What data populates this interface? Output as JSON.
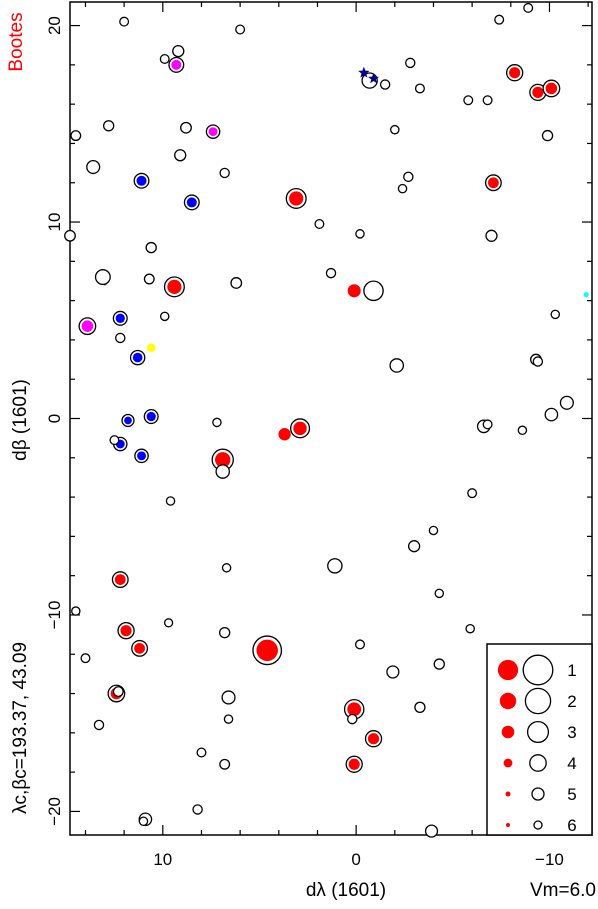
{
  "chart_data": {
    "type": "scatter",
    "title": "Bootes",
    "xlabel": "dλ (1601)",
    "ylabel": "dβ (1601)",
    "center_label": "λc,βc=193.37, 43.09",
    "magnitude_label": "Vm=6.0",
    "xlim": [
      14.8,
      -12.2
    ],
    "ylim": [
      -21.2,
      21.2
    ],
    "x_ticks": [
      10,
      0,
      -10
    ],
    "x_tick_labels": [
      "10",
      "0",
      "−10"
    ],
    "y_ticks": [
      -20,
      -10,
      0,
      10,
      20
    ],
    "y_tick_labels": [
      "−20",
      "−10",
      "0",
      "10",
      "20"
    ],
    "grid": false,
    "colors": {
      "title": "#ff0000",
      "red": "#ff0000",
      "blue": "#0000ff",
      "magenta": "#ff00ff",
      "yellow": "#ffff00",
      "cyan": "#00ffff",
      "navy": "#00008b"
    },
    "legend": {
      "position": "bottom-right",
      "entries": [
        {
          "label": "1",
          "size_class": 1
        },
        {
          "label": "2",
          "size_class": 2
        },
        {
          "label": "3",
          "size_class": 3
        },
        {
          "label": "4",
          "size_class": 4
        },
        {
          "label": "5",
          "size_class": 5
        },
        {
          "label": "6",
          "size_class": 6
        }
      ]
    },
    "stars": [
      {
        "x": 4.6,
        "y": -11.8,
        "mag": 1.2,
        "color": "red",
        "ring": true
      },
      {
        "x": 6.9,
        "y": -2.1,
        "mag": 2.8,
        "color": "red",
        "ring": true
      },
      {
        "x": 9.4,
        "y": 6.7,
        "mag": 3.1,
        "color": "red",
        "ring": true
      },
      {
        "x": 3.1,
        "y": 11.2,
        "mag": 3.1,
        "color": "red",
        "ring": true
      },
      {
        "x": 0.1,
        "y": 6.5,
        "mag": 3.4,
        "color": "red",
        "ring": false
      },
      {
        "x": -0.9,
        "y": 6.5,
        "mag": 3.2,
        "color": "none",
        "ring": true
      },
      {
        "x": 0.1,
        "y": -14.8,
        "mag": 3.2,
        "color": "red",
        "ring": true
      },
      {
        "x": 3.7,
        "y": -0.8,
        "mag": 3.6,
        "color": "red",
        "ring": false
      },
      {
        "x": 2.9,
        "y": -0.5,
        "mag": 3.3,
        "color": "red",
        "ring": true
      },
      {
        "x": 0.1,
        "y": -17.6,
        "mag": 3.9,
        "color": "red",
        "ring": true
      },
      {
        "x": -0.9,
        "y": -16.3,
        "mag": 3.9,
        "color": "red",
        "ring": true
      },
      {
        "x": 12.2,
        "y": -8.2,
        "mag": 4.0,
        "color": "red",
        "ring": true
      },
      {
        "x": 11.9,
        "y": -10.8,
        "mag": 3.9,
        "color": "red",
        "ring": true
      },
      {
        "x": 11.2,
        "y": -11.7,
        "mag": 4.0,
        "color": "red",
        "ring": true
      },
      {
        "x": 12.4,
        "y": -14.0,
        "mag": 3.8,
        "color": "red",
        "ring": true
      },
      {
        "x": -8.2,
        "y": 17.6,
        "mag": 3.9,
        "color": "red",
        "ring": true
      },
      {
        "x": -9.4,
        "y": 16.6,
        "mag": 3.9,
        "color": "red",
        "ring": true
      },
      {
        "x": -10.1,
        "y": 16.8,
        "mag": 3.8,
        "color": "red",
        "ring": true
      },
      {
        "x": -7.1,
        "y": 12.0,
        "mag": 4.0,
        "color": "red",
        "ring": true
      },
      {
        "x": 11.1,
        "y": 12.1,
        "mag": 4.2,
        "color": "blue",
        "ring": true
      },
      {
        "x": 8.5,
        "y": 11.0,
        "mag": 4.2,
        "color": "blue",
        "ring": true
      },
      {
        "x": 12.2,
        "y": 5.1,
        "mag": 4.4,
        "color": "blue",
        "ring": true
      },
      {
        "x": 11.3,
        "y": 3.1,
        "mag": 4.3,
        "color": "blue",
        "ring": true
      },
      {
        "x": 10.6,
        "y": 0.1,
        "mag": 4.4,
        "color": "blue",
        "ring": true
      },
      {
        "x": 11.8,
        "y": -0.1,
        "mag": 4.8,
        "color": "blue",
        "ring": true
      },
      {
        "x": 12.2,
        "y": -1.3,
        "mag": 4.5,
        "color": "blue",
        "ring": true
      },
      {
        "x": 11.1,
        "y": -1.9,
        "mag": 4.5,
        "color": "blue",
        "ring": true
      },
      {
        "x": 9.3,
        "y": 18.0,
        "mag": 4.2,
        "color": "magenta",
        "ring": true
      },
      {
        "x": 7.4,
        "y": 14.6,
        "mag": 4.5,
        "color": "magenta",
        "ring": true
      },
      {
        "x": 13.9,
        "y": 4.7,
        "mag": 3.8,
        "color": "magenta",
        "ring": true
      },
      {
        "x": 13.0,
        "y": 6.9,
        "mag": 5.5,
        "color": "magenta",
        "ring": false
      },
      {
        "x": 10.6,
        "y": 3.6,
        "mag": 4.6,
        "color": "yellow",
        "ring": false
      },
      {
        "x": -11.9,
        "y": 6.3,
        "mag": 5.5,
        "color": "cyan",
        "ring": false
      },
      {
        "x": -0.7,
        "y": 17.2,
        "mag": 4.1,
        "color": "none",
        "ring": true
      },
      {
        "x": -0.9,
        "y": 17.3,
        "mag": 5.3,
        "color": "navy",
        "ring": false
      },
      {
        "x": -0.4,
        "y": 17.6,
        "mag": 5.2,
        "color": "navy",
        "ring": false
      },
      {
        "x": 13.1,
        "y": 7.2,
        "mag": 4.2,
        "color": "none",
        "ring": true
      },
      {
        "x": 13.6,
        "y": 12.8,
        "mag": 4.6,
        "color": "none",
        "ring": true
      },
      {
        "x": 6.9,
        "y": -2.7,
        "mag": 4.5,
        "color": "none",
        "ring": true
      },
      {
        "x": 1.1,
        "y": -7.5,
        "mag": 4.3,
        "color": "none",
        "ring": true
      },
      {
        "x": 6.6,
        "y": -14.2,
        "mag": 4.6,
        "color": "none",
        "ring": true
      },
      {
        "x": -2.1,
        "y": 2.7,
        "mag": 4.5,
        "color": "none",
        "ring": true
      },
      {
        "x": -10.9,
        "y": 0.8,
        "mag": 4.6,
        "color": "none",
        "ring": true
      },
      {
        "x": -10.1,
        "y": 0.2,
        "mag": 4.7,
        "color": "none",
        "ring": true
      },
      {
        "x": -6.6,
        "y": -0.4,
        "mag": 4.7,
        "color": "none",
        "ring": true
      },
      {
        "x": -1.9,
        "y": -12.9,
        "mag": 4.8,
        "color": "none",
        "ring": true
      },
      {
        "x": 10.9,
        "y": -20.4,
        "mag": 4.7,
        "color": "none",
        "ring": true
      },
      {
        "x": -3.9,
        "y": -21.0,
        "mag": 4.8,
        "color": "none",
        "ring": true
      },
      {
        "x": -3.0,
        "y": -6.5,
        "mag": 5.0,
        "color": "none",
        "ring": true
      },
      {
        "x": -3.3,
        "y": -14.7,
        "mag": 5.2,
        "color": "none",
        "ring": true
      },
      {
        "x": -4.3,
        "y": -12.5,
        "mag": 5.2,
        "color": "none",
        "ring": true
      },
      {
        "x": -7.0,
        "y": 9.3,
        "mag": 5.0,
        "color": "none",
        "ring": true
      },
      {
        "x": 6.2,
        "y": 6.9,
        "mag": 5.1,
        "color": "none",
        "ring": true
      },
      {
        "x": 12.8,
        "y": 14.9,
        "mag": 5.2,
        "color": "none",
        "ring": true
      },
      {
        "x": 14.5,
        "y": 14.4,
        "mag": 5.3,
        "color": "none",
        "ring": true
      },
      {
        "x": 14.8,
        "y": 9.3,
        "mag": 5.1,
        "color": "none",
        "ring": true
      },
      {
        "x": 9.2,
        "y": 18.7,
        "mag": 5.0,
        "color": "none",
        "ring": true
      },
      {
        "x": 9.9,
        "y": 18.3,
        "mag": 5.5,
        "color": "none",
        "ring": true
      },
      {
        "x": 8.8,
        "y": 14.8,
        "mag": 5.1,
        "color": "none",
        "ring": true
      },
      {
        "x": 9.1,
        "y": 13.4,
        "mag": 5.0,
        "color": "none",
        "ring": true
      },
      {
        "x": 6.8,
        "y": 12.5,
        "mag": 5.4,
        "color": "none",
        "ring": true
      },
      {
        "x": 6.0,
        "y": 19.8,
        "mag": 5.5,
        "color": "none",
        "ring": true
      },
      {
        "x": 12.0,
        "y": 20.2,
        "mag": 5.5,
        "color": "none",
        "ring": true
      },
      {
        "x": 10.6,
        "y": 8.7,
        "mag": 5.2,
        "color": "none",
        "ring": true
      },
      {
        "x": 10.7,
        "y": 7.1,
        "mag": 5.3,
        "color": "none",
        "ring": true
      },
      {
        "x": 9.9,
        "y": 5.2,
        "mag": 5.6,
        "color": "none",
        "ring": true
      },
      {
        "x": 12.2,
        "y": 4.1,
        "mag": 5.4,
        "color": "none",
        "ring": true
      },
      {
        "x": 12.5,
        "y": -1.1,
        "mag": 5.5,
        "color": "none",
        "ring": true
      },
      {
        "x": 7.2,
        "y": -0.2,
        "mag": 5.6,
        "color": "none",
        "ring": true
      },
      {
        "x": 9.6,
        "y": -4.2,
        "mag": 5.6,
        "color": "none",
        "ring": true
      },
      {
        "x": 6.7,
        "y": -7.6,
        "mag": 5.6,
        "color": "none",
        "ring": true
      },
      {
        "x": 6.8,
        "y": -10.9,
        "mag": 5.2,
        "color": "none",
        "ring": true
      },
      {
        "x": 6.6,
        "y": -15.3,
        "mag": 5.6,
        "color": "none",
        "ring": true
      },
      {
        "x": 6.8,
        "y": -17.6,
        "mag": 5.3,
        "color": "none",
        "ring": true
      },
      {
        "x": 8.0,
        "y": -17.0,
        "mag": 5.5,
        "color": "none",
        "ring": true
      },
      {
        "x": 8.2,
        "y": -19.9,
        "mag": 5.4,
        "color": "none",
        "ring": true
      },
      {
        "x": 11.0,
        "y": -20.5,
        "mag": 5.6,
        "color": "none",
        "ring": true
      },
      {
        "x": 9.7,
        "y": -10.4,
        "mag": 5.7,
        "color": "none",
        "ring": true
      },
      {
        "x": 12.3,
        "y": -13.9,
        "mag": 5.3,
        "color": "none",
        "ring": true
      },
      {
        "x": 13.3,
        "y": -15.6,
        "mag": 5.4,
        "color": "none",
        "ring": true
      },
      {
        "x": 14.0,
        "y": -12.2,
        "mag": 5.5,
        "color": "none",
        "ring": true
      },
      {
        "x": 14.5,
        "y": -9.8,
        "mag": 5.6,
        "color": "none",
        "ring": true
      },
      {
        "x": 1.9,
        "y": 9.9,
        "mag": 5.5,
        "color": "none",
        "ring": true
      },
      {
        "x": 1.3,
        "y": 7.4,
        "mag": 5.4,
        "color": "none",
        "ring": true
      },
      {
        "x": -0.2,
        "y": 9.4,
        "mag": 5.6,
        "color": "none",
        "ring": true
      },
      {
        "x": -1.5,
        "y": 17.0,
        "mag": 5.4,
        "color": "none",
        "ring": true
      },
      {
        "x": -2.8,
        "y": 18.1,
        "mag": 5.4,
        "color": "none",
        "ring": true
      },
      {
        "x": -3.3,
        "y": 16.8,
        "mag": 5.5,
        "color": "none",
        "ring": true
      },
      {
        "x": -2.0,
        "y": 14.7,
        "mag": 5.6,
        "color": "none",
        "ring": true
      },
      {
        "x": -2.7,
        "y": 12.3,
        "mag": 5.4,
        "color": "none",
        "ring": true
      },
      {
        "x": -2.4,
        "y": 11.7,
        "mag": 5.6,
        "color": "none",
        "ring": true
      },
      {
        "x": -5.8,
        "y": 16.2,
        "mag": 5.5,
        "color": "none",
        "ring": true
      },
      {
        "x": -6.8,
        "y": 16.2,
        "mag": 5.5,
        "color": "none",
        "ring": true
      },
      {
        "x": -7.4,
        "y": 20.3,
        "mag": 5.5,
        "color": "none",
        "ring": true
      },
      {
        "x": -8.9,
        "y": 20.9,
        "mag": 5.5,
        "color": "none",
        "ring": true
      },
      {
        "x": -9.9,
        "y": 14.4,
        "mag": 5.2,
        "color": "none",
        "ring": true
      },
      {
        "x": -10.3,
        "y": 5.3,
        "mag": 5.6,
        "color": "none",
        "ring": true
      },
      {
        "x": -9.3,
        "y": 3.0,
        "mag": 5.1,
        "color": "none",
        "ring": true
      },
      {
        "x": -9.4,
        "y": 2.9,
        "mag": 5.4,
        "color": "none",
        "ring": true
      },
      {
        "x": -6.8,
        "y": -0.3,
        "mag": 5.5,
        "color": "none",
        "ring": true
      },
      {
        "x": -8.6,
        "y": -0.6,
        "mag": 5.6,
        "color": "none",
        "ring": true
      },
      {
        "x": -6.0,
        "y": -3.8,
        "mag": 5.5,
        "color": "none",
        "ring": true
      },
      {
        "x": -4.0,
        "y": -5.7,
        "mag": 5.6,
        "color": "none",
        "ring": true
      },
      {
        "x": -4.3,
        "y": -8.9,
        "mag": 5.6,
        "color": "none",
        "ring": true
      },
      {
        "x": -5.9,
        "y": -10.7,
        "mag": 5.6,
        "color": "none",
        "ring": true
      },
      {
        "x": -0.2,
        "y": -11.5,
        "mag": 5.5,
        "color": "none",
        "ring": true
      },
      {
        "x": 0.2,
        "y": -15.3,
        "mag": 5.4,
        "color": "none",
        "ring": true
      }
    ]
  }
}
